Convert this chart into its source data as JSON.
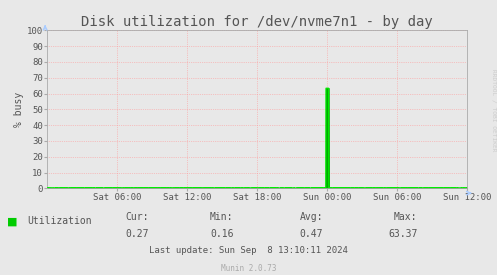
{
  "title": "Disk utilization for /dev/nvme7n1 - by day",
  "ylabel": "% busy",
  "background_color": "#E8E8E8",
  "plot_bg_color": "#E8E8E8",
  "grid_color": "#FF9999",
  "line_color": "#00EE00",
  "fill_color": "#00AA00",
  "yticks": [
    0,
    10,
    20,
    30,
    40,
    50,
    60,
    70,
    80,
    90,
    100
  ],
  "xtick_labels": [
    "Sat 06:00",
    "Sat 12:00",
    "Sat 18:00",
    "Sun 00:00",
    "Sun 06:00",
    "Sun 12:00"
  ],
  "x_tick_hours": [
    6,
    12,
    18,
    24,
    30,
    36
  ],
  "total_hours": 36.0,
  "ylim": [
    0,
    100
  ],
  "spike_hour": 24.0,
  "spike_value": 63.37,
  "legend_label": "Utilization",
  "legend_color": "#00CC00",
  "stats_cur": "0.27",
  "stats_min": "0.16",
  "stats_avg": "0.47",
  "stats_max": "63.37",
  "last_update": "Last update: Sun Sep  8 13:10:11 2024",
  "munin_version": "Munin 2.0.73",
  "rrdtool_text": "RRDTOOL / TOBI OETIKER",
  "title_fontsize": 10,
  "axis_fontsize": 7,
  "tick_fontsize": 6.5,
  "legend_fontsize": 7,
  "stats_fontsize": 7,
  "arrow_color": "#AACCFF",
  "spine_color": "#AAAAAA",
  "text_color": "#555555"
}
